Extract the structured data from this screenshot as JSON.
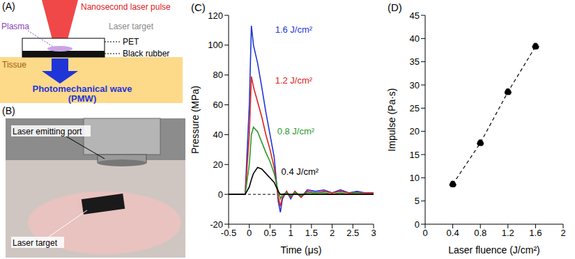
{
  "panels": {
    "A": {
      "label": "(A)",
      "beam": "Nanosecond laser pulse",
      "plasma": "Plasma",
      "target": "Laser target",
      "pet": "PET",
      "rubber": "Black rubber",
      "tissue": "Tissue",
      "wave": "Photomechanical wave",
      "wave_abbr": "(PMW)"
    },
    "B": {
      "label": "(B)",
      "port": "Laser emitting port",
      "target": "Laser target"
    }
  },
  "chart_data": [
    {
      "type": "line",
      "title": "(C)",
      "x_label": "Time (μs)",
      "y_label": "Pressure (MPa)",
      "x": [
        -0.5,
        -0.1,
        0,
        0.05,
        0.1,
        0.2,
        0.3,
        0.4,
        0.5,
        0.6,
        0.7,
        0.75,
        0.8,
        0.9,
        1.0,
        1.1,
        1.25,
        1.4,
        1.6,
        1.8,
        2.0,
        2.2,
        2.4,
        2.6,
        2.8,
        3.0
      ],
      "series": [
        {
          "name": "1.6 J/cm²",
          "color": "#1f35d8",
          "values": [
            0,
            0,
            60,
            113,
            100,
            88,
            72,
            55,
            40,
            25,
            -5,
            -12,
            -3,
            2,
            -3,
            2,
            -2,
            3,
            2,
            3,
            1,
            3,
            1,
            2,
            1,
            1
          ]
        },
        {
          "name": "1.2 J/cm²",
          "color": "#e0201b",
          "values": [
            0,
            0,
            40,
            79,
            72,
            62,
            52,
            40,
            30,
            18,
            -2,
            -8,
            -2,
            2,
            -2,
            2,
            -2,
            2,
            1,
            2,
            1,
            2,
            1,
            1,
            1,
            1
          ]
        },
        {
          "name": "0.8 J/cm²",
          "color": "#2a9a2a",
          "values": [
            0,
            0,
            20,
            40,
            45,
            42,
            35,
            28,
            22,
            14,
            2,
            -3,
            0,
            1,
            -1,
            1,
            -1,
            1,
            1,
            1,
            0,
            1,
            0,
            1,
            0,
            0
          ]
        },
        {
          "name": "0.4 J/cm²",
          "color": "#000000",
          "values": [
            0,
            0,
            5,
            10,
            14,
            18,
            17,
            14,
            11,
            8,
            2,
            0,
            0,
            0,
            0,
            0,
            0,
            0,
            0,
            0,
            0,
            0,
            0,
            0,
            0,
            0
          ]
        }
      ],
      "baseline": 0,
      "xlim": [
        -0.5,
        3
      ],
      "xticks": [
        -0.5,
        0,
        0.5,
        1,
        1.5,
        2,
        2.5,
        3
      ],
      "ylim": [
        -20,
        120
      ],
      "yticks": [
        -20,
        0,
        20,
        40,
        60,
        80,
        100,
        120
      ],
      "grid": false
    },
    {
      "type": "line",
      "title": "(D)",
      "x_label": "Laser fluence (J/cm²)",
      "y_label": "Impulse (Pa·s)",
      "x": [
        0.4,
        0.8,
        1.2,
        1.6
      ],
      "values": [
        8.6,
        17.5,
        28.5,
        38.3
      ],
      "color": "#000000",
      "marker": "circle",
      "line_style": "dashed",
      "xlim": [
        0,
        2
      ],
      "xticks": [
        0,
        0.4,
        0.8,
        1.2,
        1.6,
        2
      ],
      "ylim": [
        0,
        45
      ],
      "yticks": [
        0,
        5,
        10,
        15,
        20,
        25,
        30,
        35,
        40,
        45
      ],
      "grid": false
    }
  ]
}
